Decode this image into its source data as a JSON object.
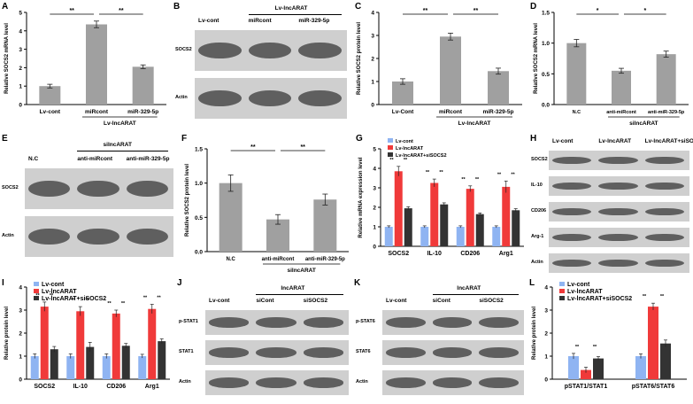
{
  "panel_labels": {
    "A": "A",
    "B": "B",
    "C": "C",
    "D": "D",
    "E": "E",
    "F": "F",
    "G": "G",
    "H": "H",
    "I": "I",
    "J": "J",
    "K": "K",
    "L": "L"
  },
  "colors": {
    "gray_bar": "#a0a0a0",
    "blue": "#8fb4f2",
    "red": "#f03a3a",
    "dark": "#333333",
    "blot_bg": "#cfcfcf",
    "band": "#3a3a3a"
  },
  "chart_data": [
    {
      "id": "A",
      "type": "bar",
      "ylabel": "Relative SOCS2 mRNA level",
      "ylim": [
        0,
        5
      ],
      "yticks": [
        "0",
        "1",
        "2",
        "3",
        "4",
        "5"
      ],
      "categories": [
        "Lv-cont",
        "miRcont",
        "miR-329-5p"
      ],
      "values": [
        1.0,
        4.35,
        2.05
      ],
      "errors": [
        0.1,
        0.18,
        0.1
      ],
      "group_label": "Lv-lncARAT",
      "group_span": [
        1,
        2
      ],
      "sig": [
        {
          "from": 0,
          "to": 1,
          "label": "**"
        },
        {
          "from": 1,
          "to": 2,
          "label": "**"
        }
      ]
    },
    {
      "id": "C",
      "type": "bar",
      "ylabel": "Relative SOCS2 protein level",
      "ylim": [
        0,
        4
      ],
      "yticks": [
        "0",
        "1",
        "2",
        "3",
        "4"
      ],
      "categories": [
        "Lv-Cont",
        "miRcont",
        "miR-329-5p"
      ],
      "values": [
        1.0,
        2.95,
        1.45
      ],
      "errors": [
        0.12,
        0.15,
        0.13
      ],
      "group_label": "Lv-lncARAT",
      "group_span": [
        1,
        2
      ],
      "sig": [
        {
          "from": 0,
          "to": 1,
          "label": "**"
        },
        {
          "from": 1,
          "to": 2,
          "label": "**"
        }
      ]
    },
    {
      "id": "D",
      "type": "bar",
      "ylabel": "Relative SOCS2 mRNA level",
      "ylim": [
        0,
        1.5
      ],
      "yticks": [
        "0.0",
        "0.5",
        "1.0",
        "1.5"
      ],
      "categories": [
        "N.C",
        "anti-miRcont",
        "anti-miR-329-5p"
      ],
      "values": [
        1.0,
        0.55,
        0.82
      ],
      "errors": [
        0.06,
        0.04,
        0.05
      ],
      "group_label": "silncARAT",
      "group_span": [
        1,
        2
      ],
      "sig": [
        {
          "from": 0,
          "to": 1,
          "label": "*"
        },
        {
          "from": 1,
          "to": 2,
          "label": "*"
        }
      ]
    },
    {
      "id": "F",
      "type": "bar",
      "ylabel": "Relative SOCS2 protein level",
      "ylim": [
        0,
        1.5
      ],
      "yticks": [
        "0.0",
        "0.5",
        "1.0",
        "1.5"
      ],
      "categories": [
        "N.C",
        "anti-miRcont",
        "anti-miR-329-5p"
      ],
      "values": [
        1.0,
        0.47,
        0.76
      ],
      "errors": [
        0.12,
        0.07,
        0.08
      ],
      "group_label": "silncARAT",
      "group_span": [
        1,
        2
      ],
      "sig": [
        {
          "from": 0,
          "to": 1,
          "label": "**"
        },
        {
          "from": 1,
          "to": 2,
          "label": "**"
        }
      ]
    },
    {
      "id": "G",
      "type": "bar",
      "ylabel": "Relative mRNA expression level",
      "ylim": [
        0,
        5
      ],
      "yticks": [
        "0",
        "1",
        "2",
        "3",
        "4",
        "5"
      ],
      "categories": [
        "SOCS2",
        "IL-10",
        "CD206",
        "Arg1"
      ],
      "series": [
        {
          "name": "Lv-cont",
          "color": "#8fb4f2",
          "values": [
            1.0,
            1.0,
            1.0,
            1.0
          ],
          "errors": [
            0.05,
            0.05,
            0.05,
            0.05
          ]
        },
        {
          "name": "Lv-lncARAT",
          "color": "#f03a3a",
          "values": [
            3.85,
            3.25,
            2.95,
            3.05
          ],
          "errors": [
            0.25,
            0.2,
            0.15,
            0.3
          ]
        },
        {
          "name": "Lv-lncARAT+siSOCS2",
          "color": "#333333",
          "values": [
            1.95,
            2.15,
            1.65,
            1.85
          ],
          "errors": [
            0.08,
            0.08,
            0.06,
            0.08
          ]
        }
      ],
      "sig_groups": [
        "**",
        "**"
      ]
    },
    {
      "id": "I",
      "type": "bar",
      "ylabel": "Relative protein level",
      "ylim": [
        0,
        4
      ],
      "yticks": [
        "0",
        "1",
        "2",
        "3",
        "4"
      ],
      "categories": [
        "SOCS2",
        "IL-10",
        "CD206",
        "Arg1"
      ],
      "series": [
        {
          "name": "Lv-cont",
          "color": "#8fb4f2",
          "values": [
            1.0,
            1.0,
            1.0,
            1.0
          ],
          "errors": [
            0.1,
            0.1,
            0.1,
            0.08
          ]
        },
        {
          "name": "Lv-lncARAT",
          "color": "#f03a3a",
          "values": [
            3.15,
            2.95,
            2.85,
            3.05
          ],
          "errors": [
            0.2,
            0.2,
            0.15,
            0.2
          ]
        },
        {
          "name": "Lv-lncARAT+siSOCS2",
          "color": "#333333",
          "values": [
            1.3,
            1.4,
            1.45,
            1.65
          ],
          "errors": [
            0.12,
            0.2,
            0.1,
            0.1
          ]
        }
      ],
      "sig_groups": [
        "**",
        "**"
      ]
    },
    {
      "id": "L",
      "type": "bar",
      "ylabel": "Relative protein level",
      "ylim": [
        0,
        4
      ],
      "yticks": [
        "0",
        "1",
        "2",
        "3",
        "4"
      ],
      "categories": [
        "pSTAT1/STAT1",
        "pSTAT6/STAT6"
      ],
      "series": [
        {
          "name": "Lv-cont",
          "color": "#8fb4f2",
          "values": [
            1.0,
            1.0
          ],
          "errors": [
            0.12,
            0.1
          ]
        },
        {
          "name": "Lv-lncARAT",
          "color": "#f03a3a",
          "values": [
            0.4,
            3.15
          ],
          "errors": [
            0.12,
            0.15
          ]
        },
        {
          "name": "Lv-lncARAT+siSOCS2",
          "color": "#333333",
          "values": [
            0.9,
            1.55
          ],
          "errors": [
            0.08,
            0.15
          ]
        }
      ],
      "sig_groups": [
        "**",
        "**"
      ]
    }
  ],
  "blots": {
    "B": {
      "group_label": "Lv-lncARAT",
      "lanes": [
        "Lv-cont",
        "miRcont",
        "miR-329-5p"
      ],
      "rows": [
        "SOCS2",
        "Actin"
      ]
    },
    "E": {
      "group_label": "silncARAT",
      "lanes": [
        "N.C",
        "anti-miRcont",
        "anti-miR-329-5p"
      ],
      "rows": [
        "SOCS2",
        "Actin"
      ]
    },
    "H": {
      "lanes": [
        "Lv-cont",
        "Lv-lncARAT",
        "Lv-lncARAT+siSOCS2"
      ],
      "rows": [
        "SOCS2",
        "IL-10",
        "CD206",
        "Arg-1",
        "Actin"
      ]
    },
    "J": {
      "group_label": "lncARAT",
      "lanes": [
        "Lv-cont",
        "siCont",
        "siSOCS2"
      ],
      "rows": [
        "p-STAT1",
        "STAT1",
        "Actin"
      ]
    },
    "K": {
      "group_label": "lncARAT",
      "lanes": [
        "Lv-cont",
        "siCont",
        "siSOCS2"
      ],
      "rows": [
        "p-STAT6",
        "STAT6",
        "Actin"
      ]
    }
  }
}
